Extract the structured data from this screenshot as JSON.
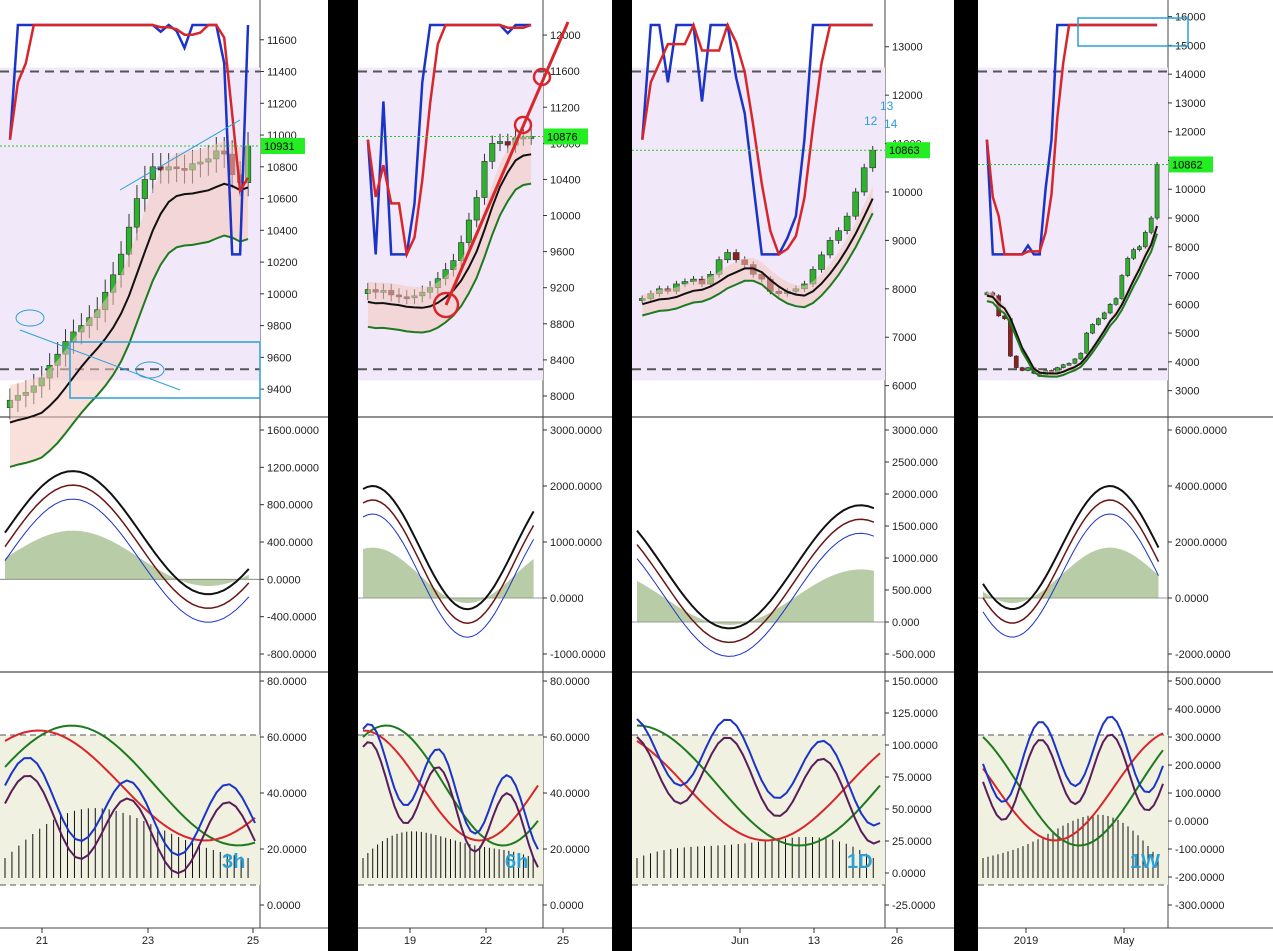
{
  "colors": {
    "bg": "#ffffff",
    "sep": "#000000",
    "zone": "#f1e9fa",
    "oscZone": "#f1f1e1",
    "grid": "#e6e6e6",
    "red": "#d8262b",
    "blue": "#1c33c8",
    "green": "#1e7a1e",
    "darkGreen": "#14601a",
    "black": "#111111",
    "maroon": "#6b1414",
    "purple": "#5a1d5c",
    "candleUp": "#2fb02f",
    "candleDown": "#8c1f1f",
    "annot": "#2b9fd6",
    "priceTag": "#22ee22",
    "bandFill": "#f4c6bb",
    "cyan": "#2b9fd6"
  },
  "panels": [
    {
      "id": "p3h",
      "timeframe_label": "3h",
      "x_ticks": [
        "21",
        "23",
        "25"
      ],
      "price": {
        "ticks": [
          "11600",
          "11400",
          "11200",
          "11000",
          "10800",
          "10600",
          "10400",
          "10200",
          "10000",
          "9800",
          "9600",
          "9400"
        ],
        "current": "10931"
      },
      "macd": {
        "ticks": [
          "1600.0000",
          "1200.0000",
          "800.0000",
          "400.0000",
          "0.0000",
          "-400.0000",
          "-800.0000"
        ]
      },
      "osc": {
        "ticks": [
          "80.0000",
          "60.0000",
          "40.0000",
          "20.0000",
          "0.0000"
        ]
      }
    },
    {
      "id": "p6h",
      "timeframe_label": "6h",
      "x_ticks": [
        "19",
        "22",
        "25"
      ],
      "price": {
        "ticks": [
          "12000",
          "11600",
          "11200",
          "10800",
          "10400",
          "10000",
          "9600",
          "9200",
          "8800",
          "8400",
          "8000"
        ],
        "current": "10876"
      },
      "macd": {
        "ticks": [
          "3000.0000",
          "2000.0000",
          "1000.0000",
          "0.0000",
          "-1000.0000"
        ]
      },
      "osc": {
        "ticks": [
          "80.0000",
          "60.0000",
          "40.0000",
          "20.0000",
          "0.0000"
        ]
      }
    },
    {
      "id": "p1d",
      "timeframe_label": "1D",
      "x_ticks": [
        "Jun",
        "13",
        "26"
      ],
      "price": {
        "ticks": [
          "13000",
          "12000",
          "11000",
          "10000",
          "9000",
          "8000",
          "7000",
          "6000"
        ],
        "current": "10863"
      },
      "macd": {
        "ticks": [
          "3000.000",
          "2500.000",
          "2000.000",
          "1500.000",
          "1000.000",
          "500.000",
          "0.000",
          "-500.000"
        ]
      },
      "osc": {
        "ticks": [
          "150.0000",
          "125.0000",
          "100.0000",
          "75.0000",
          "50.0000",
          "25.0000",
          "0.0000",
          "-25.0000"
        ]
      }
    },
    {
      "id": "p1w",
      "timeframe_label": "1W",
      "x_ticks": [
        "2019",
        "May"
      ],
      "price": {
        "ticks": [
          "16000",
          "15000",
          "14000",
          "13000",
          "12000",
          "11000",
          "10000",
          "9000",
          "8000",
          "7000",
          "6000",
          "5000",
          "4000",
          "3000"
        ],
        "current": "10862"
      },
      "macd": {
        "ticks": [
          "6000.0000",
          "4000.0000",
          "2000.0000",
          "0.0000",
          "-2000.0000"
        ]
      },
      "osc": {
        "ticks": [
          "500.0000",
          "400.0000",
          "300.0000",
          "200.0000",
          "100.0000",
          "0.0000",
          "-100.0000",
          "-200.0000",
          "-300.0000"
        ]
      }
    }
  ],
  "annotations": {
    "p1d_counts": [
      "13",
      "12",
      "14"
    ]
  },
  "chart_data": [
    {
      "type": "candlestick",
      "panel": "3h",
      "price_ticks": [
        "11600",
        "11400",
        "11200",
        "11000",
        "10800",
        "10600",
        "10400",
        "10200",
        "10000",
        "9800",
        "9600",
        "9400"
      ],
      "ylim": [
        9300,
        11800
      ],
      "close": [
        9330,
        9360,
        9380,
        9420,
        9470,
        9550,
        9620,
        9700,
        9760,
        9800,
        9850,
        9900,
        10010,
        10120,
        10250,
        10420,
        10600,
        10720,
        10800,
        10780,
        10800,
        10790,
        10780,
        10820,
        10830,
        10850,
        10900,
        10880,
        10750,
        10700,
        10931
      ]
    },
    {
      "type": "candlestick",
      "panel": "6h",
      "price_ticks": [
        "12000",
        "11600",
        "11200",
        "10800",
        "10400",
        "10000",
        "9600",
        "9200",
        "8800",
        "8400",
        "8000"
      ],
      "ylim": [
        7900,
        12300
      ],
      "close": [
        9180,
        9150,
        9170,
        9120,
        9100,
        9090,
        9110,
        9150,
        9200,
        9300,
        9400,
        9500,
        9700,
        9950,
        10200,
        10600,
        10800,
        10820,
        10780,
        10860,
        10870,
        10876
      ]
    },
    {
      "type": "candlestick",
      "panel": "1D",
      "price_ticks": [
        "13000",
        "12000",
        "11000",
        "10000",
        "9000",
        "8000",
        "7000",
        "6000"
      ],
      "ylim": [
        5600,
        13800
      ],
      "close": [
        7800,
        7900,
        8000,
        7950,
        8100,
        8150,
        8200,
        8100,
        8300,
        8600,
        8750,
        8600,
        8500,
        8300,
        8200,
        7950,
        7900,
        7950,
        8000,
        8100,
        8400,
        8700,
        9000,
        9200,
        9500,
        10000,
        10500,
        10863
      ]
    },
    {
      "type": "candlestick",
      "panel": "1W",
      "price_ticks": [
        "16000",
        "15000",
        "14000",
        "13000",
        "12000",
        "11000",
        "10000",
        "9000",
        "8000",
        "7000",
        "6000",
        "5000",
        "4000",
        "3000"
      ],
      "ylim": [
        2500,
        16300
      ],
      "close": [
        6400,
        6300,
        5600,
        5500,
        4200,
        3800,
        3700,
        3800,
        3600,
        3500,
        3700,
        3650,
        3800,
        3900,
        3950,
        4100,
        4300,
        5000,
        5300,
        5500,
        5700,
        6000,
        6200,
        7000,
        7600,
        7900,
        8000,
        8500,
        9000,
        10862
      ]
    }
  ]
}
